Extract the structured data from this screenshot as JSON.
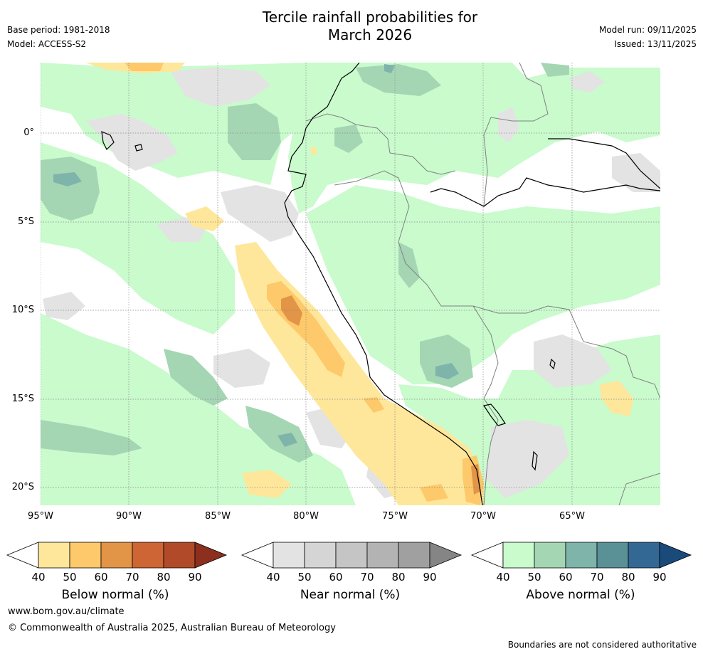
{
  "header": {
    "title_line1": "Tercile rainfall probabilities for",
    "title_line2": "March 2026",
    "base_period": "Base period: 1981-2018",
    "model": "Model: ACCESS-S2",
    "model_run": "Model run: 09/11/2025",
    "issued": "Issued: 13/11/2025"
  },
  "map": {
    "lat_labels": [
      "0°",
      "5°S",
      "10°S",
      "15°S",
      "20°S"
    ],
    "lon_labels": [
      "95°W",
      "90°W",
      "85°W",
      "80°W",
      "75°W",
      "70°W",
      "65°W"
    ]
  },
  "legends": [
    {
      "title": "Below normal (%)",
      "ticks": [
        "40",
        "50",
        "60",
        "70",
        "80",
        "90"
      ],
      "colors": [
        "#fee79b",
        "#fdc96a",
        "#e29447",
        "#cd6535",
        "#b04a29",
        "#8c2f1e"
      ]
    },
    {
      "title": "Near normal (%)",
      "ticks": [
        "40",
        "50",
        "60",
        "70",
        "80",
        "90"
      ],
      "colors": [
        "#e3e3e3",
        "#d5d5d5",
        "#c5c5c5",
        "#b3b3b3",
        "#a0a0a0",
        "#858585"
      ]
    },
    {
      "title": "Above normal (%)",
      "ticks": [
        "40",
        "50",
        "60",
        "70",
        "80",
        "90"
      ],
      "colors": [
        "#c9fbcd",
        "#a5d6b4",
        "#7fb4ab",
        "#5a9197",
        "#336895",
        "#1a4a7a"
      ]
    }
  ],
  "footer": {
    "url": "www.bom.gov.au/climate",
    "copyright": "© Commonwealth of Australia 2025, Australian Bureau of Meteorology",
    "note": "Boundaries are not considered authoritative"
  },
  "colors": {
    "grid": "#888888",
    "coast": "#000000",
    "border": "#808080"
  }
}
